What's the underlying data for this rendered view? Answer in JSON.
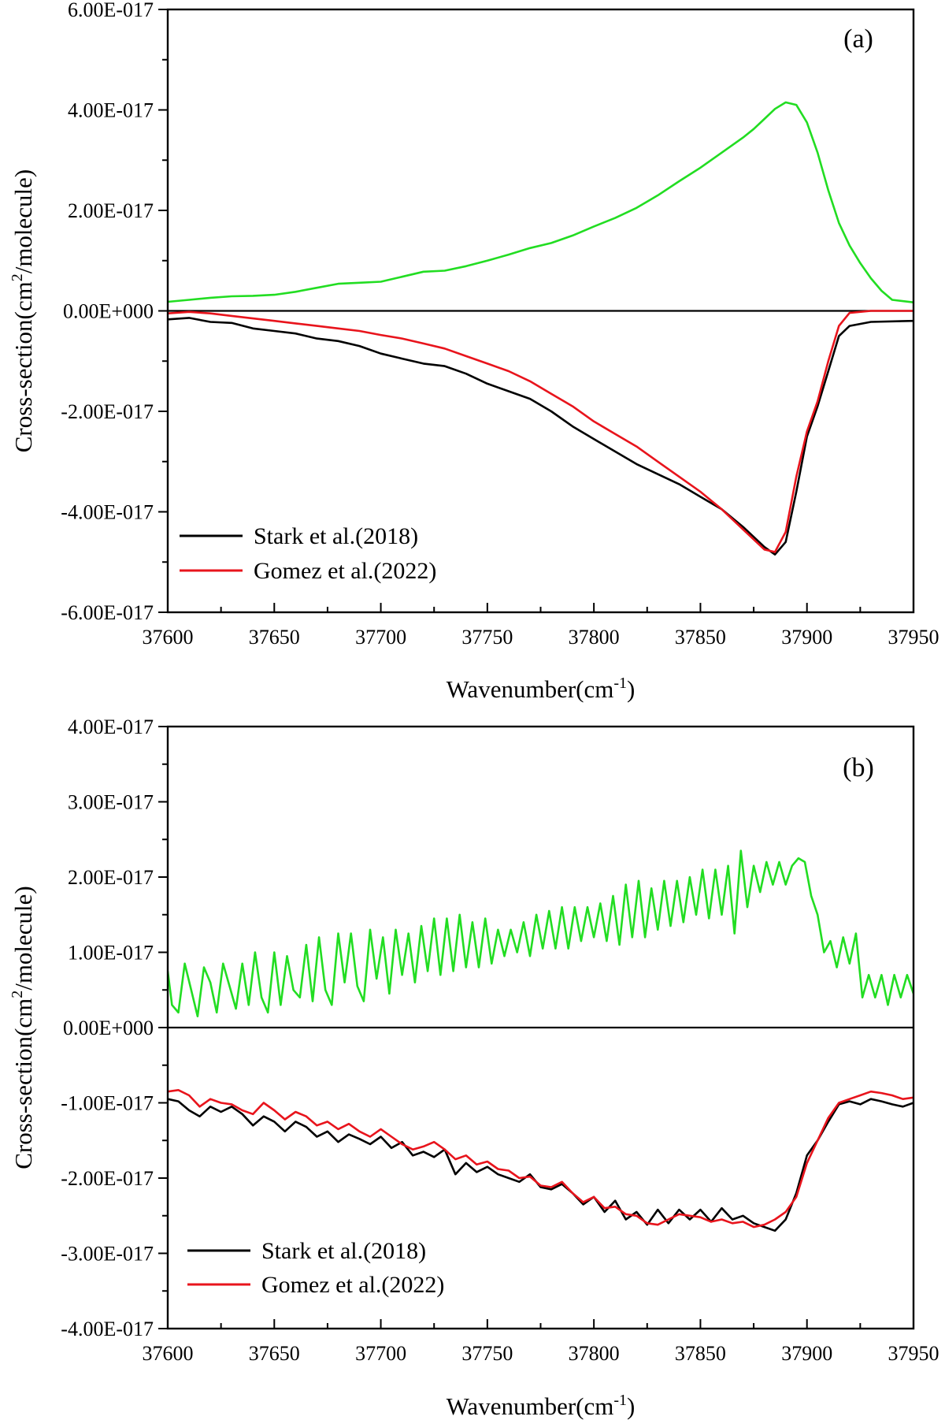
{
  "chart_data": [
    {
      "type": "line",
      "panel_label": "(a)",
      "xlabel": "Wavenumber(cm",
      "xlabel_sup": "-1",
      "xlabel_end": ")",
      "ylabel": "Cross-section(cm",
      "ylabel_sup": "2",
      "ylabel_end": "/molecule)",
      "xlim": [
        37600,
        37950
      ],
      "ylim": [
        -6e-17,
        6e-17
      ],
      "x_ticks": [
        37600,
        37650,
        37700,
        37750,
        37800,
        37850,
        37900,
        37950
      ],
      "x_tick_labels": [
        "37600",
        "37650",
        "37700",
        "37750",
        "37800",
        "37850",
        "37900",
        "37950"
      ],
      "y_ticks": [
        6e-17,
        4e-17,
        2e-17,
        0,
        -2e-17,
        -4e-17,
        -6e-17
      ],
      "y_tick_labels": [
        "6.00E-017",
        "4.00E-017",
        "2.00E-017",
        "0.00E+000",
        "-2.00E-017",
        "-4.00E-017",
        "-6.00E-017"
      ],
      "zero_line": true,
      "grid": false,
      "legend_position": "bottom-left",
      "series": [
        {
          "name": "Stark et al.(2018)",
          "color": "#000000",
          "x": [
            37600,
            37610,
            37620,
            37630,
            37640,
            37650,
            37660,
            37670,
            37680,
            37690,
            37700,
            37710,
            37720,
            37730,
            37740,
            37750,
            37760,
            37770,
            37780,
            37790,
            37800,
            37810,
            37820,
            37830,
            37840,
            37850,
            37860,
            37870,
            37880,
            37885,
            37890,
            37895,
            37900,
            37905,
            37910,
            37915,
            37920,
            37930,
            37950
          ],
          "y": [
            -1.7e-18,
            -1.4e-18,
            -2.2e-18,
            -2.4e-18,
            -3.5e-18,
            -4e-18,
            -4.5e-18,
            -5.5e-18,
            -6e-18,
            -7e-18,
            -8.5e-18,
            -9.5e-18,
            -1.05e-17,
            -1.1e-17,
            -1.25e-17,
            -1.45e-17,
            -1.6e-17,
            -1.75e-17,
            -2e-17,
            -2.3e-17,
            -2.55e-17,
            -2.8e-17,
            -3.05e-17,
            -3.25e-17,
            -3.45e-17,
            -3.7e-17,
            -3.95e-17,
            -4.3e-17,
            -4.7e-17,
            -4.85e-17,
            -4.6e-17,
            -3.6e-17,
            -2.5e-17,
            -1.9e-17,
            -1.2e-17,
            -5e-18,
            -3e-18,
            -2.2e-18,
            -2e-18
          ]
        },
        {
          "name": "Gomez et al.(2022)",
          "color": "#e8141c",
          "x": [
            37600,
            37610,
            37620,
            37630,
            37640,
            37650,
            37660,
            37670,
            37680,
            37690,
            37700,
            37710,
            37720,
            37730,
            37740,
            37750,
            37760,
            37770,
            37780,
            37790,
            37800,
            37810,
            37820,
            37830,
            37840,
            37850,
            37860,
            37870,
            37880,
            37885,
            37890,
            37895,
            37900,
            37905,
            37910,
            37915,
            37920,
            37930,
            37950
          ],
          "y": [
            -5e-19,
            -2e-19,
            -5e-19,
            -1e-18,
            -1.5e-18,
            -2e-18,
            -2.5e-18,
            -3e-18,
            -3.5e-18,
            -4e-18,
            -4.8e-18,
            -5.5e-18,
            -6.5e-18,
            -7.5e-18,
            -9e-18,
            -1.05e-17,
            -1.2e-17,
            -1.4e-17,
            -1.65e-17,
            -1.9e-17,
            -2.2e-17,
            -2.45e-17,
            -2.7e-17,
            -3e-17,
            -3.3e-17,
            -3.6e-17,
            -3.95e-17,
            -4.35e-17,
            -4.75e-17,
            -4.8e-17,
            -4.4e-17,
            -3.3e-17,
            -2.4e-17,
            -1.8e-17,
            -1e-17,
            -3e-18,
            -4e-19,
            0,
            0
          ]
        },
        {
          "name": "",
          "color": "#22dd22",
          "x": [
            37600,
            37610,
            37620,
            37630,
            37640,
            37650,
            37660,
            37670,
            37680,
            37690,
            37700,
            37710,
            37720,
            37730,
            37740,
            37750,
            37760,
            37770,
            37780,
            37790,
            37800,
            37810,
            37820,
            37830,
            37840,
            37850,
            37860,
            37870,
            37875,
            37880,
            37885,
            37890,
            37895,
            37900,
            37905,
            37910,
            37915,
            37920,
            37925,
            37930,
            37935,
            37940,
            37950
          ],
          "y": [
            1.8e-18,
            2.2e-18,
            2.6e-18,
            2.9e-18,
            3e-18,
            3.2e-18,
            3.8e-18,
            4.6e-18,
            5.4e-18,
            5.6e-18,
            5.8e-18,
            6.8e-18,
            7.8e-18,
            8e-18,
            8.9e-18,
            1e-17,
            1.12e-17,
            1.25e-17,
            1.35e-17,
            1.5e-17,
            1.68e-17,
            1.85e-17,
            2.05e-17,
            2.3e-17,
            2.58e-17,
            2.85e-17,
            3.15e-17,
            3.45e-17,
            3.62e-17,
            3.82e-17,
            4.02e-17,
            4.15e-17,
            4.1e-17,
            3.75e-17,
            3.15e-17,
            2.4e-17,
            1.75e-17,
            1.3e-17,
            9.5e-18,
            6.5e-18,
            4e-18,
            2.2e-18,
            1.7e-18
          ]
        }
      ],
      "legend_entries": [
        "Stark et al.(2018)",
        "Gomez et al.(2022)"
      ]
    },
    {
      "type": "line",
      "panel_label": "(b)",
      "xlabel": "Wavenumber(cm",
      "xlabel_sup": "-1",
      "xlabel_end": ")",
      "ylabel": "Cross-section(cm",
      "ylabel_sup": "2",
      "ylabel_end": "/molecule)",
      "xlim": [
        37600,
        37950
      ],
      "ylim": [
        -4e-17,
        4e-17
      ],
      "x_ticks": [
        37600,
        37650,
        37700,
        37750,
        37800,
        37850,
        37900,
        37950
      ],
      "x_tick_labels": [
        "37600",
        "37650",
        "37700",
        "37750",
        "37800",
        "37850",
        "37900",
        "37950"
      ],
      "y_ticks": [
        4e-17,
        3e-17,
        2e-17,
        1e-17,
        0,
        -1e-17,
        -2e-17,
        -3e-17,
        -4e-17
      ],
      "y_tick_labels": [
        "4.00E-017",
        "3.00E-017",
        "2.00E-017",
        "1.00E-017",
        "0.00E+000",
        "-1.00E-017",
        "-2.00E-017",
        "-3.00E-017",
        "-4.00E-017"
      ],
      "zero_line": true,
      "grid": false,
      "legend_position": "bottom-left",
      "series": [
        {
          "name": "Stark et al.(2018)",
          "color": "#000000",
          "x": [
            37600,
            37605,
            37610,
            37615,
            37620,
            37625,
            37630,
            37635,
            37640,
            37645,
            37650,
            37655,
            37660,
            37665,
            37670,
            37675,
            37680,
            37685,
            37690,
            37695,
            37700,
            37705,
            37710,
            37715,
            37720,
            37725,
            37730,
            37735,
            37740,
            37745,
            37750,
            37755,
            37760,
            37765,
            37770,
            37775,
            37780,
            37785,
            37790,
            37795,
            37800,
            37805,
            37810,
            37815,
            37820,
            37825,
            37830,
            37835,
            37840,
            37845,
            37850,
            37855,
            37860,
            37865,
            37870,
            37875,
            37880,
            37885,
            37890,
            37895,
            37900,
            37905,
            37910,
            37915,
            37920,
            37925,
            37930,
            37935,
            37940,
            37945,
            37950
          ],
          "y": [
            -9.5e-18,
            -9.8e-18,
            -1.1e-17,
            -1.18e-17,
            -1.05e-17,
            -1.12e-17,
            -1.05e-17,
            -1.15e-17,
            -1.3e-17,
            -1.18e-17,
            -1.25e-17,
            -1.38e-17,
            -1.25e-17,
            -1.32e-17,
            -1.45e-17,
            -1.38e-17,
            -1.52e-17,
            -1.42e-17,
            -1.48e-17,
            -1.55e-17,
            -1.45e-17,
            -1.6e-17,
            -1.52e-17,
            -1.7e-17,
            -1.65e-17,
            -1.72e-17,
            -1.62e-17,
            -1.95e-17,
            -1.8e-17,
            -1.92e-17,
            -1.85e-17,
            -1.95e-17,
            -2e-17,
            -2.05e-17,
            -1.95e-17,
            -2.12e-17,
            -2.15e-17,
            -2.08e-17,
            -2.2e-17,
            -2.35e-17,
            -2.25e-17,
            -2.45e-17,
            -2.3e-17,
            -2.55e-17,
            -2.45e-17,
            -2.62e-17,
            -2.42e-17,
            -2.6e-17,
            -2.42e-17,
            -2.55e-17,
            -2.42e-17,
            -2.58e-17,
            -2.4e-17,
            -2.55e-17,
            -2.5e-17,
            -2.6e-17,
            -2.65e-17,
            -2.7e-17,
            -2.55e-17,
            -2.2e-17,
            -1.7e-17,
            -1.5e-17,
            -1.25e-17,
            -1.02e-17,
            -9.8e-18,
            -1.02e-17,
            -9.5e-18,
            -9.8e-18,
            -1.02e-17,
            -1.05e-17,
            -1e-17
          ]
        },
        {
          "name": "Gomez et al.(2022)",
          "color": "#e8141c",
          "x": [
            37600,
            37605,
            37610,
            37615,
            37620,
            37625,
            37630,
            37635,
            37640,
            37645,
            37650,
            37655,
            37660,
            37665,
            37670,
            37675,
            37680,
            37685,
            37690,
            37695,
            37700,
            37705,
            37710,
            37715,
            37720,
            37725,
            37730,
            37735,
            37740,
            37745,
            37750,
            37755,
            37760,
            37765,
            37770,
            37775,
            37780,
            37785,
            37790,
            37795,
            37800,
            37805,
            37810,
            37815,
            37820,
            37825,
            37830,
            37835,
            37840,
            37845,
            37850,
            37855,
            37860,
            37865,
            37870,
            37875,
            37880,
            37885,
            37890,
            37895,
            37900,
            37905,
            37910,
            37915,
            37920,
            37925,
            37930,
            37935,
            37940,
            37945,
            37950
          ],
          "y": [
            -8.5e-18,
            -8.3e-18,
            -9e-18,
            -1.05e-17,
            -9.5e-18,
            -1e-17,
            -1.02e-17,
            -1.1e-17,
            -1.15e-17,
            -1e-17,
            -1.1e-17,
            -1.22e-17,
            -1.12e-17,
            -1.18e-17,
            -1.3e-17,
            -1.25e-17,
            -1.35e-17,
            -1.28e-17,
            -1.38e-17,
            -1.45e-17,
            -1.35e-17,
            -1.45e-17,
            -1.55e-17,
            -1.62e-17,
            -1.58e-17,
            -1.52e-17,
            -1.62e-17,
            -1.75e-17,
            -1.7e-17,
            -1.82e-17,
            -1.78e-17,
            -1.88e-17,
            -1.9e-17,
            -2e-17,
            -1.98e-17,
            -2.1e-17,
            -2.12e-17,
            -2.05e-17,
            -2.2e-17,
            -2.32e-17,
            -2.25e-17,
            -2.4e-17,
            -2.38e-17,
            -2.48e-17,
            -2.5e-17,
            -2.6e-17,
            -2.62e-17,
            -2.55e-17,
            -2.48e-17,
            -2.5e-17,
            -2.52e-17,
            -2.58e-17,
            -2.55e-17,
            -2.6e-17,
            -2.58e-17,
            -2.65e-17,
            -2.62e-17,
            -2.55e-17,
            -2.45e-17,
            -2.25e-17,
            -1.8e-17,
            -1.5e-17,
            -1.2e-17,
            -1e-17,
            -9.5e-18,
            -9e-18,
            -8.5e-18,
            -8.7e-18,
            -9e-18,
            -9.5e-18,
            -9.3e-18
          ]
        },
        {
          "name": "",
          "color": "#22dd22",
          "x": [
            37600,
            37602,
            37605,
            37608,
            37611,
            37614,
            37617,
            37620,
            37623,
            37626,
            37629,
            37632,
            37635,
            37638,
            37641,
            37644,
            37647,
            37650,
            37653,
            37656,
            37659,
            37662,
            37665,
            37668,
            37671,
            37674,
            37677,
            37680,
            37683,
            37686,
            37689,
            37692,
            37695,
            37698,
            37701,
            37704,
            37707,
            37710,
            37713,
            37716,
            37719,
            37722,
            37725,
            37728,
            37731,
            37734,
            37737,
            37740,
            37743,
            37746,
            37749,
            37752,
            37755,
            37758,
            37761,
            37764,
            37767,
            37770,
            37773,
            37776,
            37779,
            37782,
            37785,
            37788,
            37791,
            37794,
            37797,
            37800,
            37803,
            37806,
            37809,
            37812,
            37815,
            37818,
            37821,
            37824,
            37827,
            37830,
            37833,
            37836,
            37839,
            37842,
            37845,
            37848,
            37851,
            37854,
            37857,
            37860,
            37863,
            37866,
            37869,
            37872,
            37875,
            37878,
            37881,
            37884,
            37887,
            37890,
            37893,
            37896,
            37899,
            37902,
            37905,
            37908,
            37911,
            37914,
            37917,
            37920,
            37923,
            37926,
            37929,
            37932,
            37935,
            37938,
            37941,
            37944,
            37947,
            37950
          ],
          "y": [
            7.5e-18,
            3e-18,
            2e-18,
            8.5e-18,
            5e-18,
            1.5e-18,
            8e-18,
            6e-18,
            2e-18,
            8.5e-18,
            5.5e-18,
            2.5e-18,
            8.5e-18,
            3e-18,
            1e-17,
            4e-18,
            2e-18,
            1e-17,
            3e-18,
            9.5e-18,
            5e-18,
            4e-18,
            1.1e-17,
            3.5e-18,
            1.2e-17,
            5e-18,
            3e-18,
            1.25e-17,
            6e-18,
            1.25e-17,
            5.5e-18,
            3.5e-18,
            1.3e-17,
            6.5e-18,
            1.2e-17,
            4.5e-18,
            1.3e-17,
            7e-18,
            1.25e-17,
            6e-18,
            1.35e-17,
            7.5e-18,
            1.45e-17,
            7e-18,
            1.45e-17,
            7.5e-18,
            1.5e-17,
            8e-18,
            1.4e-17,
            8e-18,
            1.45e-17,
            8.5e-18,
            1.3e-17,
            9.5e-18,
            1.3e-17,
            1e-17,
            1.4e-17,
            9.5e-18,
            1.5e-17,
            1.05e-17,
            1.55e-17,
            1.05e-17,
            1.6e-17,
            1.05e-17,
            1.6e-17,
            1.15e-17,
            1.6e-17,
            1.2e-17,
            1.65e-17,
            1.15e-17,
            1.75e-17,
            1.1e-17,
            1.9e-17,
            1.2e-17,
            1.95e-17,
            1.2e-17,
            1.85e-17,
            1.3e-17,
            1.95e-17,
            1.35e-17,
            1.95e-17,
            1.4e-17,
            2e-17,
            1.5e-17,
            2.1e-17,
            1.45e-17,
            2.1e-17,
            1.5e-17,
            2.15e-17,
            1.25e-17,
            2.35e-17,
            1.6e-17,
            2.15e-17,
            1.8e-17,
            2.2e-17,
            1.9e-17,
            2.2e-17,
            1.9e-17,
            2.15e-17,
            2.25e-17,
            2.2e-17,
            1.75e-17,
            1.5e-17,
            1e-17,
            1.15e-17,
            8e-18,
            1.2e-17,
            8.5e-18,
            1.25e-17,
            4e-18,
            7e-18,
            4e-18,
            7e-18,
            3e-18,
            7e-18,
            4e-18,
            7e-18,
            4.5e-18
          ]
        }
      ],
      "legend_entries": [
        "Stark et al.(2018)",
        "Gomez et al.(2022)"
      ]
    }
  ]
}
